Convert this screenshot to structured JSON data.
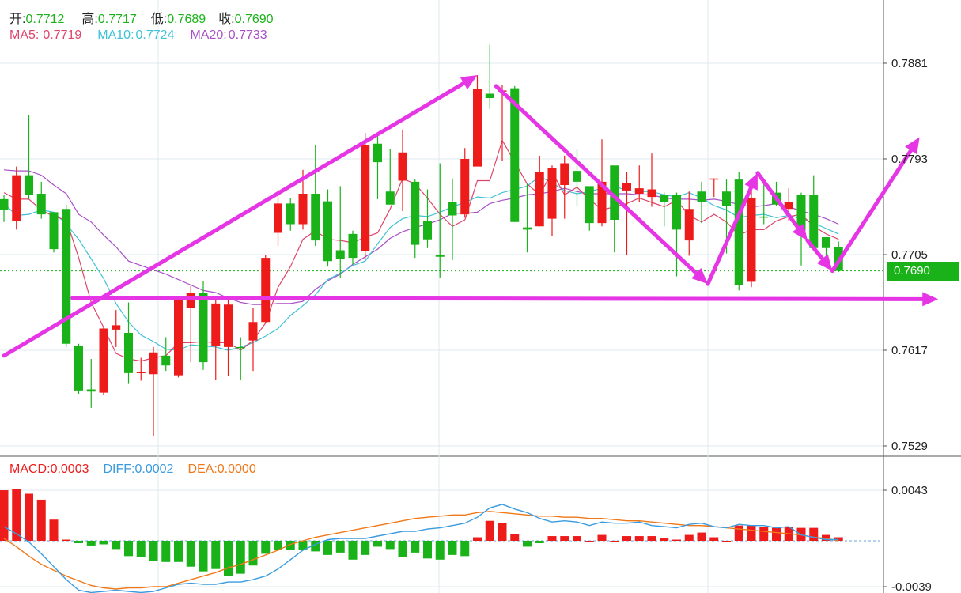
{
  "header": {
    "open_label": "开:",
    "open": "0.7712",
    "high_label": "高:",
    "high": "0.7717",
    "low_label": "低:",
    "low": "0.7689",
    "close_label": "收:",
    "close": "0.7690",
    "ma5_label": "MA5:",
    "ma5": "0.7719",
    "ma10_label": "MA10:",
    "ma10": "0.7724",
    "ma20_label": "MA20:",
    "ma20": "0.7733"
  },
  "macd_header": {
    "macd_label": "MACD:",
    "macd": "0.0003",
    "diff_label": "DIFF:",
    "diff": "0.0002",
    "dea_label": "DEA:",
    "dea": "0.0000"
  },
  "current_price": "0.7690",
  "colors": {
    "up": "#ee1b1b",
    "down": "#19b319",
    "ma5": "#e0446a",
    "ma10": "#3ec2d6",
    "ma20": "#a84fc8",
    "diff": "#3a9be0",
    "dea": "#f07818",
    "annotation": "#e535e5"
  },
  "chart_data": [
    {
      "type": "candlestick",
      "yticks": [
        "0.7881",
        "0.7793",
        "0.7705",
        "0.7617",
        "0.7529"
      ],
      "ylim": [
        0.7521,
        0.7925
      ],
      "candles": [
        [
          0.7756,
          0.7746,
          0.776,
          0.7735
        ],
        [
          0.7736,
          0.7778,
          0.7786,
          0.7728
        ],
        [
          0.7778,
          0.776,
          0.7833,
          0.7756
        ],
        [
          0.7761,
          0.7742,
          0.7772,
          0.7738
        ],
        [
          0.7744,
          0.771,
          0.7744,
          0.7707
        ],
        [
          0.7747,
          0.7623,
          0.7751,
          0.762
        ],
        [
          0.7621,
          0.758,
          0.7623,
          0.7577
        ],
        [
          0.7581,
          0.7579,
          0.7609,
          0.7564
        ],
        [
          0.7578,
          0.7637,
          0.7639,
          0.7576
        ],
        [
          0.7636,
          0.764,
          0.7654,
          0.762
        ],
        [
          0.7633,
          0.7596,
          0.7661,
          0.7586
        ],
        [
          0.7596,
          0.7597,
          0.761,
          0.7589
        ],
        [
          0.7595,
          0.7615,
          0.762,
          0.7538
        ],
        [
          0.7612,
          0.7603,
          0.7629,
          0.7598
        ],
        [
          0.7594,
          0.7664,
          0.7666,
          0.7592
        ],
        [
          0.7656,
          0.767,
          0.7676,
          0.7606
        ],
        [
          0.767,
          0.7606,
          0.7681,
          0.7599
        ],
        [
          0.7621,
          0.766,
          0.7663,
          0.759
        ],
        [
          0.762,
          0.7659,
          0.7664,
          0.7593
        ],
        [
          0.762,
          0.7619,
          0.7629,
          0.759
        ],
        [
          0.7626,
          0.7643,
          0.7656,
          0.7598
        ],
        [
          0.7643,
          0.7702,
          0.7705,
          0.7642
        ],
        [
          0.7725,
          0.7752,
          0.7765,
          0.7713
        ],
        [
          0.7752,
          0.7733,
          0.7757,
          0.7727
        ],
        [
          0.7733,
          0.7761,
          0.7783,
          0.7728
        ],
        [
          0.7761,
          0.7718,
          0.7806,
          0.7713
        ],
        [
          0.7754,
          0.7699,
          0.7765,
          0.7694
        ],
        [
          0.7709,
          0.7701,
          0.7768,
          0.7684
        ],
        [
          0.7724,
          0.7702,
          0.7727,
          0.7696
        ],
        [
          0.7708,
          0.7806,
          0.7817,
          0.7701
        ],
        [
          0.7807,
          0.779,
          0.7817,
          0.7756
        ],
        [
          0.7763,
          0.7751,
          0.7802,
          0.7754
        ],
        [
          0.7773,
          0.7799,
          0.782,
          0.7745
        ],
        [
          0.7772,
          0.7714,
          0.7774,
          0.7702
        ],
        [
          0.7736,
          0.7719,
          0.7765,
          0.7711
        ],
        [
          0.7705,
          0.7703,
          0.7789,
          0.7684
        ],
        [
          0.7753,
          0.7741,
          0.7775,
          0.77
        ],
        [
          0.7742,
          0.7793,
          0.7803,
          0.7739
        ],
        [
          0.7786,
          0.7857,
          0.787,
          0.7787
        ],
        [
          0.7853,
          0.7849,
          0.7898,
          0.7839
        ],
        [
          0.7856,
          0.7856,
          0.7861,
          0.7791
        ],
        [
          0.7858,
          0.7735,
          0.786,
          0.7735
        ],
        [
          0.773,
          0.7728,
          0.777,
          0.7707
        ],
        [
          0.7731,
          0.7781,
          0.7796,
          0.7731
        ],
        [
          0.7738,
          0.7785,
          0.7787,
          0.7722
        ],
        [
          0.7769,
          0.7789,
          0.7796,
          0.7738
        ],
        [
          0.7782,
          0.7772,
          0.7802,
          0.775
        ],
        [
          0.7768,
          0.7734,
          0.7766,
          0.7727
        ],
        [
          0.7734,
          0.7772,
          0.7811,
          0.7731
        ],
        [
          0.7787,
          0.7737,
          0.7786,
          0.7707
        ],
        [
          0.7764,
          0.7771,
          0.7781,
          0.7705
        ],
        [
          0.7761,
          0.7766,
          0.7787,
          0.7753
        ],
        [
          0.7758,
          0.7765,
          0.7798,
          0.7749
        ],
        [
          0.776,
          0.7753,
          0.7762,
          0.7731
        ],
        [
          0.776,
          0.7728,
          0.7762,
          0.7685
        ],
        [
          0.7718,
          0.7747,
          0.7763,
          0.7704
        ],
        [
          0.7763,
          0.7753,
          0.7772,
          0.7734
        ],
        [
          0.7775,
          0.7775,
          0.7775,
          0.7758
        ],
        [
          0.7763,
          0.775,
          0.7774,
          0.7706
        ],
        [
          0.7774,
          0.7677,
          0.7781,
          0.7672
        ],
        [
          0.768,
          0.7757,
          0.7767,
          0.7675
        ],
        [
          0.774,
          0.7739,
          0.7771,
          0.7733
        ],
        [
          0.7762,
          0.7751,
          0.7772,
          0.775
        ],
        [
          0.7747,
          0.7753,
          0.7766,
          0.7736
        ],
        [
          0.776,
          0.7727,
          0.7762,
          0.7695
        ],
        [
          0.776,
          0.7711,
          0.7778,
          0.7713
        ],
        [
          0.7721,
          0.7711,
          0.7719,
          0.7696
        ],
        [
          0.7712,
          0.769,
          0.7717,
          0.7689
        ]
      ],
      "ma5": [
        0.7762,
        0.7756,
        0.7756,
        0.7746,
        0.774,
        0.7737,
        0.7702,
        0.7661,
        0.7638,
        0.7614,
        0.7609,
        0.7607,
        0.761,
        0.7612,
        0.7624,
        0.7624,
        0.7625,
        0.7624,
        0.7624,
        0.7617,
        0.7626,
        0.7642,
        0.7675,
        0.7694,
        0.7719,
        0.7727,
        0.7719,
        0.7718,
        0.7716,
        0.7721,
        0.7725,
        0.7747,
        0.7775,
        0.777,
        0.7757,
        0.7742,
        0.7731,
        0.7737,
        0.7773,
        0.7773,
        0.781,
        0.779,
        0.777,
        0.776,
        0.7781,
        0.776,
        0.7767,
        0.7756,
        0.7746,
        0.7749,
        0.7752,
        0.7757,
        0.7753,
        0.7749,
        0.7755,
        0.7741,
        0.7735,
        0.7742,
        0.7735,
        0.7723,
        0.7728,
        0.7728,
        0.7736,
        0.774,
        0.7742,
        0.7731,
        0.7724,
        0.7719
      ],
      "ma10": [
        0.7752,
        0.7741,
        0.7742,
        0.7746,
        0.7744,
        0.7733,
        0.7719,
        0.7701,
        0.7683,
        0.766,
        0.7643,
        0.7631,
        0.7625,
        0.7618,
        0.7617,
        0.7622,
        0.7621,
        0.762,
        0.7617,
        0.762,
        0.7624,
        0.763,
        0.7637,
        0.7649,
        0.7658,
        0.7668,
        0.7682,
        0.7688,
        0.7695,
        0.7699,
        0.7715,
        0.773,
        0.7738,
        0.7741,
        0.774,
        0.7744,
        0.7749,
        0.7753,
        0.7758,
        0.7757,
        0.7762,
        0.7765,
        0.7768,
        0.7777,
        0.7771,
        0.7764,
        0.7761,
        0.7763,
        0.7766,
        0.7768,
        0.7764,
        0.7763,
        0.7763,
        0.776,
        0.7758,
        0.7762,
        0.7757,
        0.775,
        0.7746,
        0.7739,
        0.7741,
        0.7742,
        0.7739,
        0.7741,
        0.7738,
        0.7734,
        0.7729,
        0.7724
      ],
      "ma20": [
        0.7783,
        0.7782,
        0.7782,
        0.7778,
        0.7769,
        0.7761,
        0.7742,
        0.7735,
        0.7723,
        0.7712,
        0.7699,
        0.7695,
        0.7691,
        0.7687,
        0.7682,
        0.7677,
        0.7672,
        0.767,
        0.7665,
        0.7661,
        0.7659,
        0.7659,
        0.766,
        0.766,
        0.7662,
        0.7673,
        0.7681,
        0.7687,
        0.7696,
        0.7703,
        0.771,
        0.772,
        0.7726,
        0.773,
        0.7733,
        0.7737,
        0.7743,
        0.7743,
        0.7744,
        0.7752,
        0.7755,
        0.7757,
        0.776,
        0.7761,
        0.7763,
        0.7766,
        0.7763,
        0.7761,
        0.7761,
        0.7761,
        0.7761,
        0.776,
        0.776,
        0.7757,
        0.7756,
        0.7756,
        0.7755,
        0.7756,
        0.7754,
        0.7751,
        0.7749,
        0.775,
        0.7752,
        0.7749,
        0.7745,
        0.7742,
        0.7738,
        0.7733
      ]
    },
    {
      "type": "bar",
      "yticks": [
        "0.0043",
        "-0.0039"
      ],
      "ylim": [
        -0.0046,
        0.0051
      ],
      "macd": [
        0.0043,
        0.0044,
        0.004,
        0.0035,
        0.0018,
        0.0001,
        -0.0002,
        -0.0004,
        -0.0003,
        -0.0007,
        -0.0013,
        -0.0014,
        -0.0017,
        -0.0018,
        -0.0018,
        -0.0022,
        -0.0026,
        -0.0024,
        -0.003,
        -0.0028,
        -0.0021,
        -0.0011,
        -0.0008,
        -0.0008,
        -0.0008,
        -0.0009,
        -0.0012,
        -0.001,
        -0.0016,
        -0.0012,
        -0.0005,
        -0.0007,
        -0.0014,
        -0.001,
        -0.0015,
        -0.0016,
        -0.0012,
        -0.0013,
        0.0003,
        0.0017,
        0.0015,
        0.0006,
        -0.0005,
        -0.0002,
        0.0004,
        0.0004,
        0.0004,
        0.0,
        0.0005,
        0.0,
        0.0004,
        0.0004,
        0.0004,
        0.0002,
        0.0001,
        0.0005,
        0.0007,
        0.0003,
        0.0,
        0.0013,
        0.0013,
        0.0012,
        0.0011,
        0.0012,
        0.0011,
        0.0011,
        0.0005,
        0.0003
      ],
      "diff": [
        0.0012,
        0.0006,
        -0.0001,
        -0.0011,
        -0.0022,
        -0.0033,
        -0.0042,
        -0.0044,
        -0.0043,
        -0.0042,
        -0.0043,
        -0.0044,
        -0.0043,
        -0.004,
        -0.0037,
        -0.0036,
        -0.0037,
        -0.0037,
        -0.0035,
        -0.0035,
        -0.0033,
        -0.003,
        -0.0024,
        -0.0016,
        -0.0008,
        -0.0003,
        0.0001,
        0.0002,
        0.0002,
        0.0002,
        0.0004,
        0.0006,
        0.0008,
        0.0008,
        0.001,
        0.0011,
        0.0013,
        0.0015,
        0.002,
        0.0028,
        0.0031,
        0.0027,
        0.0024,
        0.0019,
        0.0016,
        0.0017,
        0.0016,
        0.0013,
        0.0016,
        0.0015,
        0.0015,
        0.0016,
        0.0013,
        0.0012,
        0.0011,
        0.0014,
        0.0015,
        0.0012,
        0.0011,
        0.0014,
        0.0013,
        0.0013,
        0.0011,
        0.0012,
        0.0005,
        0.0003,
        0.0001,
        0.0001
      ],
      "dea": [
        0.0002,
        -0.0005,
        -0.0013,
        -0.002,
        -0.0025,
        -0.003,
        -0.0034,
        -0.0038,
        -0.004,
        -0.0041,
        -0.004,
        -0.004,
        -0.0039,
        -0.0039,
        -0.0036,
        -0.0033,
        -0.003,
        -0.0027,
        -0.0023,
        -0.002,
        -0.0016,
        -0.0012,
        -0.0008,
        -0.0003,
        0.0,
        0.0003,
        0.0005,
        0.0007,
        0.0009,
        0.0011,
        0.0013,
        0.0015,
        0.0017,
        0.0019,
        0.002,
        0.0021,
        0.0022,
        0.0022,
        0.0024,
        0.0025,
        0.0024,
        0.0023,
        0.0022,
        0.0021,
        0.0021,
        0.002,
        0.002,
        0.0019,
        0.0019,
        0.0018,
        0.0017,
        0.0017,
        0.0016,
        0.0015,
        0.0014,
        0.0013,
        0.0013,
        0.0012,
        0.0011,
        0.001,
        0.0009,
        0.0008,
        0.0007,
        0.0006,
        0.0005,
        0.0003,
        0.0002,
        0.0
      ]
    }
  ],
  "annotations": [
    [
      [
        0.0,
        0.7612
      ],
      [
        38.0,
        0.787
      ]
    ],
    [
      [
        39.5,
        0.786
      ],
      [
        56.5,
        0.7678
      ]
    ],
    [
      [
        56.5,
        0.7678
      ],
      [
        60.5,
        0.778
      ]
    ],
    [
      [
        60.5,
        0.778
      ],
      [
        64.5,
        0.7718
      ]
    ],
    [
      [
        64.5,
        0.7718
      ],
      [
        66.5,
        0.769
      ]
    ],
    [
      [
        66.5,
        0.769
      ],
      [
        73.5,
        0.7813
      ]
    ],
    [
      [
        5.5,
        0.7665
      ],
      [
        75.0,
        0.7664
      ]
    ]
  ]
}
